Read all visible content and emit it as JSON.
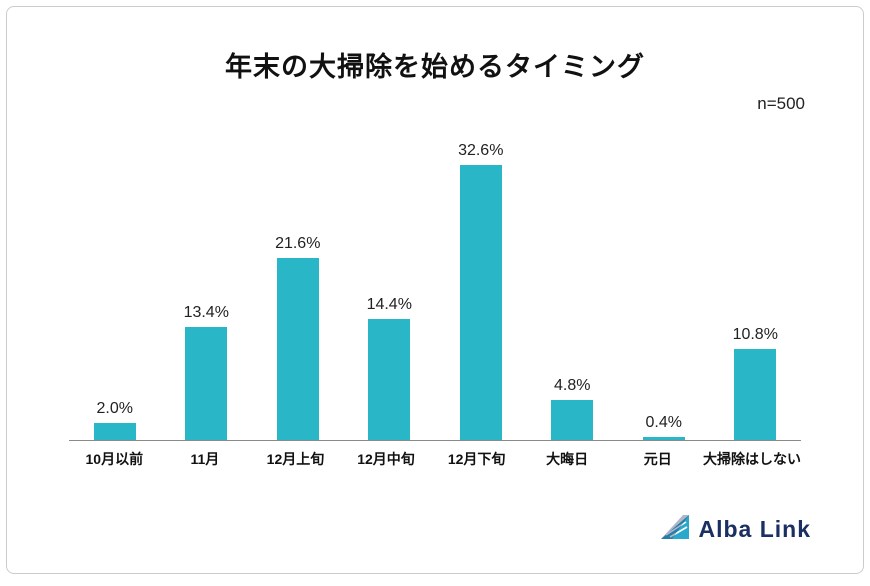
{
  "title": "年末の大掃除を始めるタイミング",
  "sample_size": "n=500",
  "logo": {
    "text": "Alba Link"
  },
  "colors": {
    "bar": "#29b6c6",
    "axis": "#8a8a8a",
    "logo_text": "#1c2f63",
    "logo_icon": "#2aa8cc"
  },
  "chart_data": {
    "type": "bar",
    "title": "年末の大掃除を始めるタイミング",
    "subtitle": "n=500",
    "categories": [
      "10月以前",
      "11月",
      "12月上旬",
      "12月中旬",
      "12月下旬",
      "大晦日",
      "元日",
      "大掃除はしない"
    ],
    "values": [
      2.0,
      13.4,
      21.6,
      14.4,
      32.6,
      4.8,
      0.4,
      10.8
    ],
    "value_labels": [
      "2.0%",
      "13.4%",
      "21.6%",
      "14.4%",
      "32.6%",
      "4.8%",
      "0.4%",
      "10.8%"
    ],
    "xlabel": "",
    "ylabel": "",
    "ylim": [
      0,
      35
    ],
    "grid": false,
    "legend": false,
    "bar_color": "#29b6c6"
  }
}
